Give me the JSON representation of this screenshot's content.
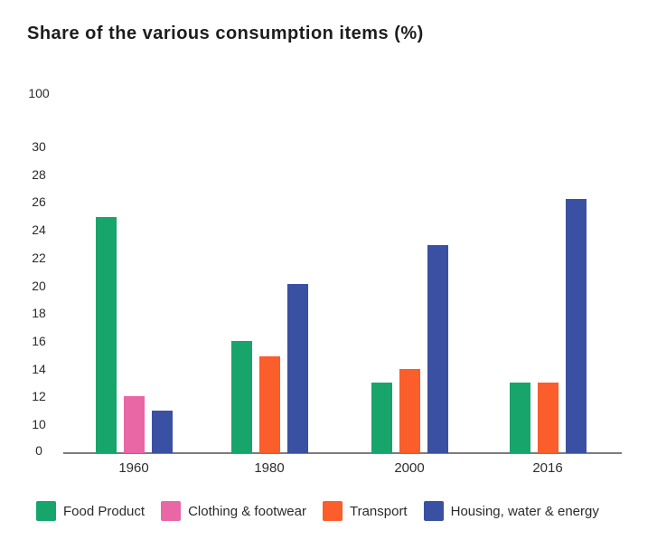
{
  "chart_data": {
    "type": "bar",
    "title": "Share of the various consumption items (%)",
    "categories": [
      "1960",
      "1980",
      "2000",
      "2016"
    ],
    "series": [
      {
        "name": "Food Product",
        "color": "#17A56C",
        "values": [
          24.9,
          16.0,
          13.0,
          13.0
        ]
      },
      {
        "name": "Clothing & footwear",
        "color": "#E967A5",
        "values": [
          12.0,
          null,
          null,
          null
        ]
      },
      {
        "name": "Transport",
        "color": "#FB5D2B",
        "values": [
          null,
          14.9,
          14.0,
          13.0
        ]
      },
      {
        "name": "Housing, water & energy",
        "color": "#3A50A2",
        "values": [
          11.0,
          20.1,
          22.9,
          26.2
        ]
      }
    ],
    "yticks": [
      100,
      30,
      28,
      26,
      24,
      22,
      20,
      18,
      16,
      14,
      12,
      10,
      0
    ],
    "xlabel": "",
    "ylabel": "",
    "axis_note": "broken y-axis: segments 0-10 and 30-100 are compressed",
    "grid": false,
    "legend_position": "bottom"
  },
  "colors": {
    "axis_line": "#7c7c7c",
    "tick_text": "#2b2b2b",
    "title_text": "#1d1d1d"
  }
}
